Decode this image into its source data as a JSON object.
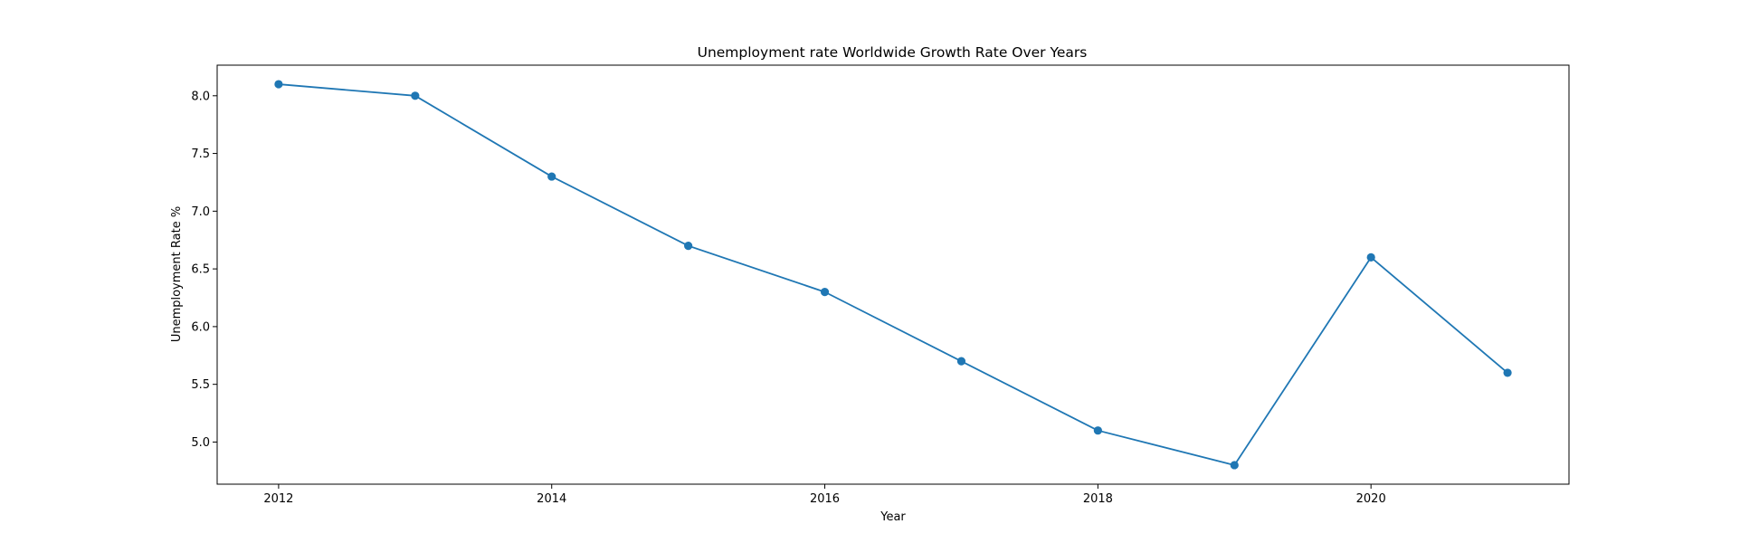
{
  "chart_data": {
    "type": "line",
    "title": "Unemployment rate Worldwide Growth Rate Over Years",
    "xlabel": "Year",
    "ylabel": "Unemployment Rate %",
    "x": [
      2012,
      2013,
      2014,
      2015,
      2016,
      2017,
      2018,
      2019,
      2020,
      2021
    ],
    "series": [
      {
        "values": [
          8.1,
          8.0,
          7.3,
          6.7,
          6.3,
          5.7,
          5.1,
          4.8,
          6.6,
          5.6
        ],
        "color": "#1f77b4"
      }
    ],
    "xlim": [
      2011.55,
      2021.45
    ],
    "ylim": [
      4.635,
      8.265
    ],
    "xticks": [
      2012,
      2014,
      2016,
      2018,
      2020
    ],
    "yticks": [
      "5.0",
      "5.5",
      "6.0",
      "6.5",
      "7.0",
      "7.5",
      "8.0"
    ],
    "grid": false,
    "marker": "circle"
  }
}
